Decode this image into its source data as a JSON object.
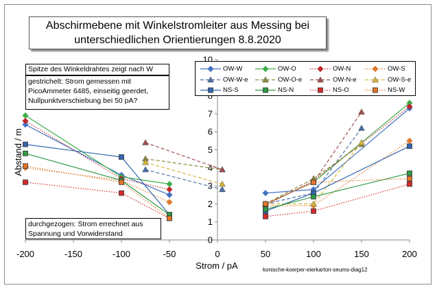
{
  "chart_data": {
    "type": "line",
    "title_lines": [
      "Abschirmebene mit Winkelstromleiter aus Messing bei",
      "unterschiedlichen Orientierungen  8.8.2020"
    ],
    "xlabel": "Strom / pA",
    "ylabel": "Abstand / m",
    "xlim": [
      -200,
      200
    ],
    "ylim": [
      0,
      10
    ],
    "x_ticks": [
      -200,
      -150,
      -100,
      -50,
      0,
      50,
      100,
      150,
      200
    ],
    "y_ticks": [
      0,
      1,
      2,
      3,
      4,
      5,
      6,
      7,
      8,
      9,
      10
    ],
    "grid": "none",
    "legend_position": "top-right",
    "source_label": "konische-koerper-eierkarton-seums-diag12",
    "annotations": {
      "tip": "Spitze des Winkeldrahtes zeigt nach W",
      "dashed_note": "gestrichelt: Strom gemessen mit PicoAmmeter 6485, einseitig geerdet, Nullpunktverschiebung bei 50 pA?",
      "solid_note": "durchgezogen: Strom errechnet aus Spannung und Vorwiderstand"
    },
    "series": [
      {
        "name": "OW-W",
        "color": "#4472c4",
        "marker": "diamond",
        "line": "solid",
        "x": [
          -200,
          -100,
          -50,
          50,
          100,
          200
        ],
        "y": [
          6.4,
          3.6,
          2.5,
          2.6,
          2.8,
          7.3
        ]
      },
      {
        "name": "OW-O",
        "color": "#3fae49",
        "marker": "diamond",
        "line": "solid",
        "x": [
          -200,
          -100,
          -50,
          50,
          100,
          200
        ],
        "y": [
          6.9,
          3.5,
          3.1,
          2.0,
          3.2,
          7.6
        ]
      },
      {
        "name": "OW-N",
        "color": "#c0282d",
        "marker": "diamond",
        "line": "dotted",
        "x": [
          -200,
          -100,
          -50,
          50,
          100,
          200
        ],
        "y": [
          6.6,
          3.4,
          2.8,
          1.9,
          3.3,
          7.4
        ]
      },
      {
        "name": "OW-S",
        "color": "#e07a2e",
        "marker": "diamond",
        "line": "dotted",
        "x": [
          -200,
          -100,
          -50,
          50,
          100,
          200
        ],
        "y": [
          4.0,
          3.3,
          2.1,
          1.9,
          1.9,
          5.5
        ]
      },
      {
        "name": "OW-W-e",
        "color": "#4a6fa5",
        "marker": "triangle",
        "line": "dashed",
        "x": [
          -75,
          5,
          50,
          100,
          150
        ],
        "y": [
          3.9,
          2.8,
          2.0,
          2.6,
          6.2
        ]
      },
      {
        "name": "OW-O-e",
        "color": "#8a8a3a",
        "marker": "triangle",
        "line": "dashed",
        "x": [
          -75,
          5,
          50,
          100,
          150
        ],
        "y": [
          4.5,
          3.9,
          2.0,
          3.4,
          5.3
        ]
      },
      {
        "name": "OW-N-e",
        "color": "#a05050",
        "marker": "triangle",
        "line": "dashed",
        "x": [
          -75,
          5,
          50,
          100,
          150
        ],
        "y": [
          5.4,
          3.9,
          2.0,
          3.2,
          7.1
        ]
      },
      {
        "name": "OW-S-e",
        "color": "#d4b43a",
        "marker": "triangle",
        "line": "dashed",
        "x": [
          -75,
          5,
          50,
          100,
          150
        ],
        "y": [
          4.3,
          3.1,
          2.0,
          2.0,
          5.4
        ]
      },
      {
        "name": "NS-S",
        "color": "#3466b0",
        "marker": "square",
        "line": "solid",
        "x": [
          -200,
          -100,
          -50,
          50,
          100,
          200
        ],
        "y": [
          5.3,
          4.6,
          1.4,
          1.6,
          2.6,
          5.2
        ]
      },
      {
        "name": "NS-N",
        "color": "#2e9a44",
        "marker": "square",
        "line": "solid",
        "x": [
          -200,
          -100,
          -50,
          50,
          100,
          200
        ],
        "y": [
          4.8,
          3.3,
          1.4,
          1.7,
          2.4,
          3.7
        ]
      },
      {
        "name": "NS-O",
        "color": "#d6292b",
        "marker": "square",
        "line": "dotted",
        "x": [
          -200,
          -100,
          -50,
          50,
          100,
          200
        ],
        "y": [
          3.2,
          2.6,
          1.2,
          1.3,
          1.6,
          3.1
        ]
      },
      {
        "name": "NS-W",
        "color": "#e0762b",
        "marker": "square",
        "line": "dotted",
        "x": [
          -200,
          -100,
          -50,
          50,
          100,
          200
        ],
        "y": [
          4.1,
          3.2,
          1.2,
          2.0,
          3.2,
          3.4
        ]
      }
    ]
  }
}
